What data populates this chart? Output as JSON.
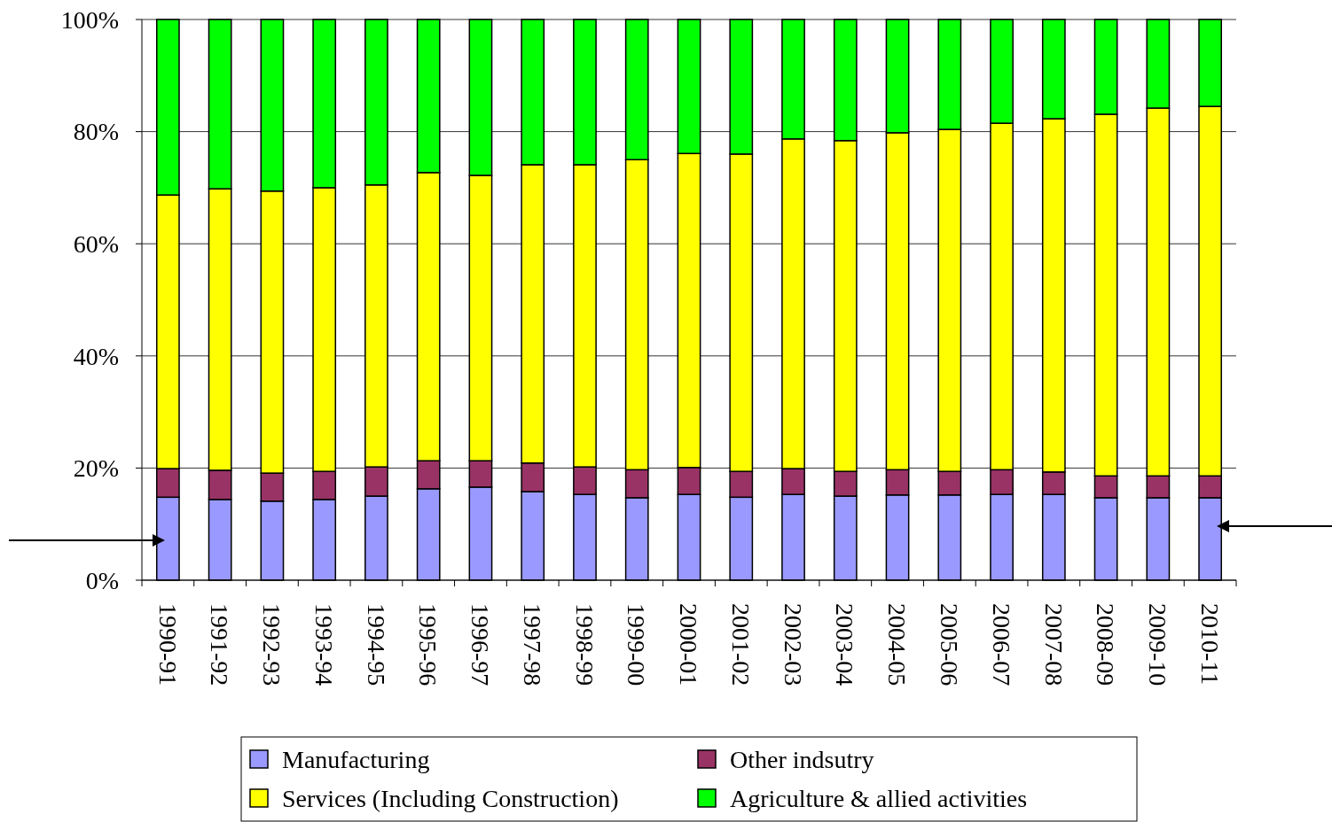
{
  "chart_data": {
    "type": "bar",
    "stacked": true,
    "categories": [
      "1990-91",
      "1991-92",
      "1992-93",
      "1993-94",
      "1994-95",
      "1995-96",
      "1996-97",
      "1997-98",
      "1998-99",
      "1999-00",
      "2000-01",
      "2001-02",
      "2002-03",
      "2003-04",
      "2004-05",
      "2005-06",
      "2006-07",
      "2007-08",
      "2008-09",
      "2009-10",
      "2010-11"
    ],
    "series": [
      {
        "name": "Manufacturing",
        "color": "#9999ff",
        "values": [
          14.8,
          14.4,
          14.1,
          14.4,
          15.0,
          16.3,
          16.6,
          15.8,
          15.3,
          14.7,
          15.3,
          14.8,
          15.3,
          15.0,
          15.2,
          15.2,
          15.3,
          15.3,
          14.7,
          14.7,
          14.7
        ]
      },
      {
        "name": "Other indsutry",
        "color": "#993366",
        "values": [
          5.1,
          5.2,
          5.0,
          5.0,
          5.2,
          5.0,
          4.7,
          5.1,
          4.9,
          5.0,
          4.8,
          4.6,
          4.6,
          4.4,
          4.5,
          4.2,
          4.4,
          4.0,
          3.9,
          3.9,
          3.9
        ]
      },
      {
        "name": "Services (Including Construction)",
        "color": "#ffff00",
        "values": [
          48.8,
          50.2,
          50.3,
          50.6,
          50.3,
          51.4,
          50.9,
          53.2,
          53.9,
          55.3,
          56.0,
          56.6,
          58.8,
          59.0,
          60.1,
          61.0,
          61.8,
          63.0,
          64.5,
          65.6,
          65.9
        ]
      },
      {
        "name": "Agriculture & allied activities",
        "color": "#00ff00",
        "values": [
          31.3,
          30.2,
          30.6,
          30.0,
          29.5,
          27.3,
          27.8,
          25.9,
          25.9,
          25.0,
          23.9,
          24.0,
          21.3,
          21.6,
          20.2,
          19.6,
          18.5,
          17.7,
          16.9,
          15.8,
          15.5
        ]
      }
    ],
    "ylim": [
      0,
      100
    ],
    "yticks": [
      {
        "value": 0,
        "label": "0%"
      },
      {
        "value": 20,
        "label": "20%"
      },
      {
        "value": 40,
        "label": "40%"
      },
      {
        "value": 60,
        "label": "60%"
      },
      {
        "value": 80,
        "label": "80%"
      },
      {
        "value": 100,
        "label": "100%"
      }
    ],
    "grid": "y",
    "legend": "bottom"
  }
}
